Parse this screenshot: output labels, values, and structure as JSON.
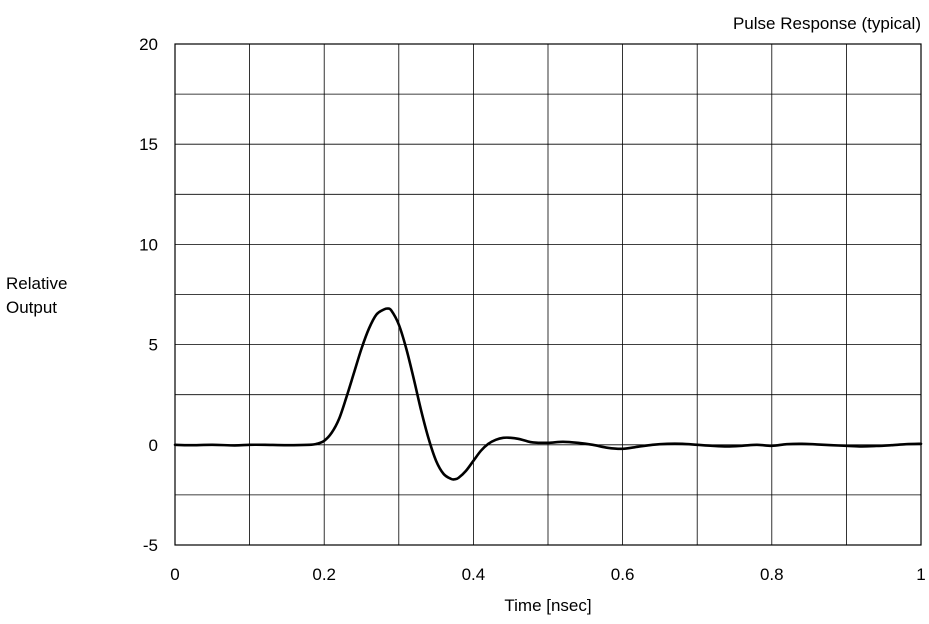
{
  "chart_data": {
    "type": "line",
    "title": "Pulse Response (typical)",
    "xlabel": "Time  [nsec]",
    "ylabel_lines": [
      "Relative",
      "Output"
    ],
    "xlim": [
      0,
      1
    ],
    "ylim": [
      -5,
      20
    ],
    "x_ticks": [
      {
        "value": 0,
        "label": "0"
      },
      {
        "value": 0.2,
        "label": "0.2"
      },
      {
        "value": 0.4,
        "label": "0.4"
      },
      {
        "value": 0.6,
        "label": "0.6"
      },
      {
        "value": 0.8,
        "label": "0.8"
      },
      {
        "value": 1,
        "label": "1"
      }
    ],
    "y_ticks": [
      {
        "value": -5,
        "label": "-5"
      },
      {
        "value": 0,
        "label": "0"
      },
      {
        "value": 5,
        "label": "5"
      },
      {
        "value": 10,
        "label": "10"
      },
      {
        "value": 15,
        "label": "15"
      },
      {
        "value": 20,
        "label": "20"
      }
    ],
    "x_grid_step": 0.1,
    "y_grid_step": 2.5,
    "grid": true,
    "line_color": "#000000",
    "series": [
      {
        "x": [
          0,
          0.02,
          0.05,
          0.08,
          0.1,
          0.12,
          0.15,
          0.18,
          0.19,
          0.2,
          0.21,
          0.22,
          0.23,
          0.24,
          0.25,
          0.26,
          0.27,
          0.28,
          0.285,
          0.29,
          0.3,
          0.31,
          0.32,
          0.33,
          0.34,
          0.35,
          0.36,
          0.37,
          0.375,
          0.38,
          0.39,
          0.4,
          0.41,
          0.42,
          0.43,
          0.44,
          0.45,
          0.46,
          0.47,
          0.48,
          0.5,
          0.52,
          0.54,
          0.56,
          0.58,
          0.6,
          0.62,
          0.64,
          0.66,
          0.68,
          0.7,
          0.72,
          0.74,
          0.76,
          0.78,
          0.8,
          0.82,
          0.84,
          0.86,
          0.88,
          0.9,
          0.92,
          0.94,
          0.96,
          0.98,
          1.0
        ],
        "y": [
          0,
          -0.02,
          0,
          -0.03,
          0,
          0,
          -0.02,
          0,
          0.05,
          0.2,
          0.6,
          1.3,
          2.4,
          3.6,
          4.8,
          5.8,
          6.5,
          6.75,
          6.8,
          6.7,
          6.0,
          4.8,
          3.3,
          1.7,
          0.3,
          -0.8,
          -1.45,
          -1.7,
          -1.72,
          -1.65,
          -1.3,
          -0.8,
          -0.3,
          0.05,
          0.25,
          0.35,
          0.35,
          0.3,
          0.2,
          0.12,
          0.1,
          0.15,
          0.1,
          0,
          -0.15,
          -0.2,
          -0.1,
          0,
          0.05,
          0.05,
          0,
          -0.05,
          -0.08,
          -0.05,
          0,
          -0.05,
          0.03,
          0.05,
          0.02,
          -0.02,
          -0.05,
          -0.08,
          -0.06,
          -0.02,
          0.03,
          0.05
        ]
      }
    ]
  }
}
